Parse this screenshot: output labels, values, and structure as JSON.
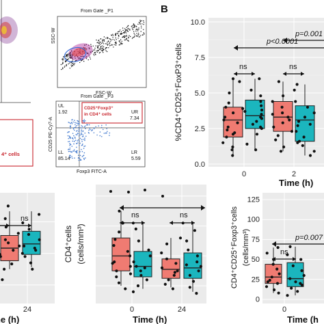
{
  "panel_label": "B",
  "flow": {
    "gate_p1_title": "From Gate _P1",
    "gate_p3_title": "From Gate _P3",
    "ssc_label": "SSC-W",
    "fsc_label": "FSC-W",
    "p3_label": "P3",
    "cd4_cells_label": "4⁺ cells",
    "quadrant_box_line1": "CD25⁺Foxp3⁺",
    "quadrant_box_line2": "in CD4⁺ cells",
    "ul_label": "UL",
    "ul_value": "1.92",
    "ur_label": "UR",
    "ur_value": "7.34",
    "ll_label": "LL",
    "ll_value": "85.14",
    "lr_label": "LR",
    "lr_value": "5.59",
    "x_axis_label": "Foxp3 FITC-A",
    "y_axis_label": "CD25 PE-Cy7-A"
  },
  "colors": {
    "red": "#f07b72",
    "teal": "#1bb6be",
    "panel_bg": "#ebebeb",
    "grid": "#ffffff"
  },
  "chart_data": [
    {
      "type": "box",
      "ylabel": "%CD4⁺CD25⁺FoxP3⁺cells",
      "xlabel": "Time (h)",
      "ylim": [
        0,
        10
      ],
      "yticks": [
        "0.0",
        "2.5",
        "5.0",
        "7.5",
        "10.0"
      ],
      "xticks": [
        "0",
        "2"
      ],
      "grid": true,
      "annotations": [
        "ns",
        "ns",
        "p<0.0001",
        "p=0.001"
      ],
      "groups": [
        {
          "x": "0",
          "color": "red",
          "min": 0.6,
          "q1": 1.9,
          "median": 3.1,
          "q3": 4.0,
          "max": 6.0,
          "points": [
            0.6,
            1.0,
            1.5,
            1.9,
            2.1,
            2.4,
            2.6,
            2.9,
            3.1,
            3.3,
            3.6,
            3.9,
            4.0,
            4.3,
            5.0,
            5.8,
            6.0,
            2.2,
            1.2
          ]
        },
        {
          "x": "0",
          "color": "teal",
          "min": 1.0,
          "q1": 2.5,
          "median": 3.4,
          "q3": 4.5,
          "max": 6.0,
          "points": [
            1.0,
            1.4,
            2.1,
            2.5,
            2.8,
            3.0,
            3.3,
            3.5,
            3.8,
            4.1,
            4.4,
            4.8,
            5.2,
            6.0,
            3.2,
            2.6,
            3.7
          ]
        },
        {
          "x": "2",
          "color": "red",
          "min": 0.9,
          "q1": 2.3,
          "median": 3.3,
          "q3": 4.4,
          "max": 5.8,
          "points": [
            0.9,
            1.2,
            1.7,
            2.3,
            2.6,
            2.9,
            3.1,
            3.3,
            3.6,
            4.0,
            4.4,
            4.8,
            5.8,
            2.0,
            3.5
          ]
        },
        {
          "x": "2",
          "color": "teal",
          "min": 0.6,
          "q1": 1.6,
          "median": 3.1,
          "q3": 4.1,
          "max": 5.6,
          "points": [
            0.6,
            0.9,
            1.3,
            1.6,
            1.9,
            2.3,
            2.7,
            3.0,
            3.3,
            3.6,
            4.0,
            4.4,
            5.2,
            5.6,
            1.5,
            2.8
          ]
        }
      ]
    },
    {
      "type": "box",
      "ylabel": "",
      "xlabel": "Time (h)",
      "xticks": [
        "24"
      ],
      "annotations": [
        "ns"
      ],
      "groups": [
        {
          "x": "0",
          "color": "red",
          "min": 0.3,
          "q1": 0.38,
          "median": 0.5,
          "q3": 0.62,
          "max": 0.85,
          "points": [
            0.2,
            0.3,
            0.35,
            0.42,
            0.48,
            0.52,
            0.58,
            0.64,
            0.7,
            0.78,
            0.9,
            0.44,
            0.55
          ]
        },
        {
          "x": "0",
          "color": "teal",
          "min": 0.32,
          "q1": 0.44,
          "median": 0.54,
          "q3": 0.66,
          "max": 0.85,
          "points": [
            0.3,
            0.36,
            0.42,
            0.48,
            0.52,
            0.58,
            0.63,
            0.68,
            0.74,
            0.82,
            0.5,
            0.45
          ]
        }
      ]
    },
    {
      "type": "box",
      "ylabel": "CD4⁺cells\n(cells/mm³)",
      "xlabel": "Time (h)",
      "xticks": [
        "0",
        "24"
      ],
      "annotations": [
        "ns",
        "ns"
      ],
      "groups": [
        {
          "x": "0",
          "color": "red",
          "min": 100,
          "q1": 200,
          "median": 300,
          "q3": 420,
          "max": 600,
          "points": [
            80,
            120,
            160,
            200,
            230,
            260,
            300,
            330,
            370,
            410,
            460,
            520,
            600,
            250,
            180
          ]
        },
        {
          "x": "0",
          "color": "teal",
          "min": 80,
          "q1": 160,
          "median": 230,
          "q3": 330,
          "max": 520,
          "points": [
            60,
            100,
            140,
            170,
            200,
            230,
            260,
            300,
            340,
            400,
            480,
            520,
            220
          ]
        },
        {
          "x": "24",
          "color": "red",
          "min": 90,
          "q1": 150,
          "median": 210,
          "q3": 280,
          "max": 420,
          "points": [
            80,
            110,
            140,
            170,
            200,
            220,
            250,
            280,
            320,
            380,
            420,
            190
          ]
        },
        {
          "x": "24",
          "color": "teal",
          "min": 60,
          "q1": 150,
          "median": 220,
          "q3": 320,
          "max": 520,
          "points": [
            50,
            90,
            130,
            170,
            200,
            230,
            260,
            300,
            340,
            400,
            470,
            520,
            240
          ]
        }
      ]
    },
    {
      "type": "box",
      "ylabel": "CD4⁺CD25⁺Foxp3⁺cells\n(cells/mm³)",
      "xlabel": "Time (h",
      "ylim": [
        0,
        125
      ],
      "yticks": [
        "0",
        "25",
        "50",
        "75",
        "100",
        "125"
      ],
      "xticks": [
        "0"
      ],
      "annotations": [
        "ns",
        "p=0.007"
      ],
      "groups": [
        {
          "x": "0",
          "color": "red",
          "min": 8,
          "q1": 20,
          "median": 28,
          "q3": 44,
          "max": 65,
          "points": [
            8,
            12,
            16,
            20,
            24,
            28,
            32,
            38,
            44,
            50,
            58,
            65,
            22
          ]
        },
        {
          "x": "0",
          "color": "teal",
          "min": 5,
          "q1": 16,
          "median": 26,
          "q3": 46,
          "max": 66,
          "points": [
            5,
            10,
            14,
            18,
            22,
            26,
            30,
            36,
            42,
            50,
            56,
            66,
            20
          ]
        }
      ]
    }
  ]
}
